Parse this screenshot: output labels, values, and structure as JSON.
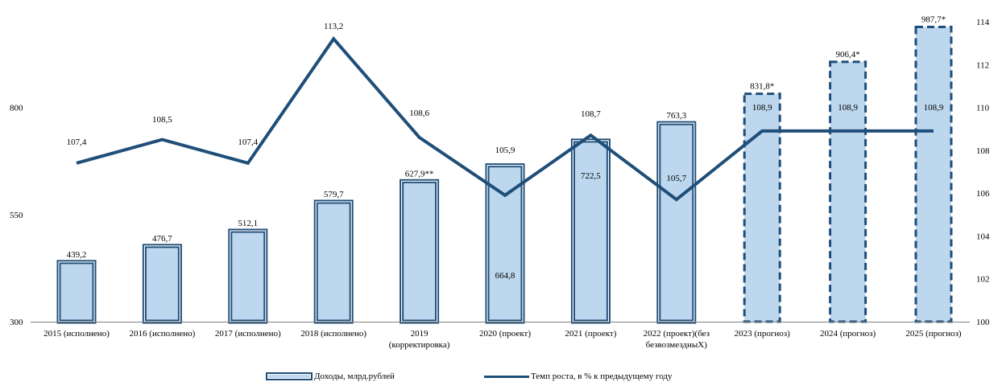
{
  "chart_data": {
    "type": "bar",
    "categories": [
      [
        "2015 (исполнено)"
      ],
      [
        "2016 (исполнено)"
      ],
      [
        "2017 (исполнено)"
      ],
      [
        "2018 (исполнено)"
      ],
      [
        "2019",
        "(корректировка)"
      ],
      [
        "2020 (проект)"
      ],
      [
        "2021 (проект)"
      ],
      [
        "2022 (проект)(без",
        "безвозмездныХ)"
      ],
      [
        "2023 (прогноз)"
      ],
      [
        "2024 (прогноз)"
      ],
      [
        "2025 (прогноз)"
      ]
    ],
    "series": [
      {
        "name": "Доходы, млрд.рублей",
        "type": "bar",
        "axis": "left",
        "values": [
          439.2,
          476.7,
          512.1,
          579.7,
          627.9,
          664.8,
          722.5,
          763.3,
          831.8,
          906.4,
          987.7
        ],
        "labels": [
          "439,2",
          "476,7",
          "512,1",
          "579,7",
          "627,9**",
          "664,8",
          "722,5",
          "763,3",
          "831,8*",
          "906,4*",
          "987,7*"
        ],
        "dashed": [
          false,
          false,
          false,
          false,
          false,
          false,
          false,
          false,
          true,
          true,
          true
        ],
        "color": "#bdd7ee",
        "border": "#1f4e79"
      },
      {
        "name": "Темп роста, в % к предыдущему году",
        "type": "line",
        "axis": "right",
        "values": [
          107.4,
          108.5,
          107.4,
          113.2,
          108.6,
          105.9,
          108.7,
          105.7,
          108.9,
          108.9,
          108.9
        ],
        "labels": [
          "107,4",
          "108,5",
          "107,4",
          "113,2",
          "108,6",
          "105,9",
          "108,7",
          "105,7",
          "108,9",
          "108,9",
          "108,9"
        ],
        "color": "#1f4e79"
      }
    ],
    "y_left": {
      "ylim": [
        300,
        1000
      ],
      "ticks": [
        300,
        550,
        800
      ]
    },
    "y_right": {
      "ylim": [
        100,
        114
      ],
      "ticks": [
        100,
        102,
        104,
        106,
        108,
        110,
        112,
        114
      ]
    },
    "grid": false,
    "legend": "bottom"
  }
}
